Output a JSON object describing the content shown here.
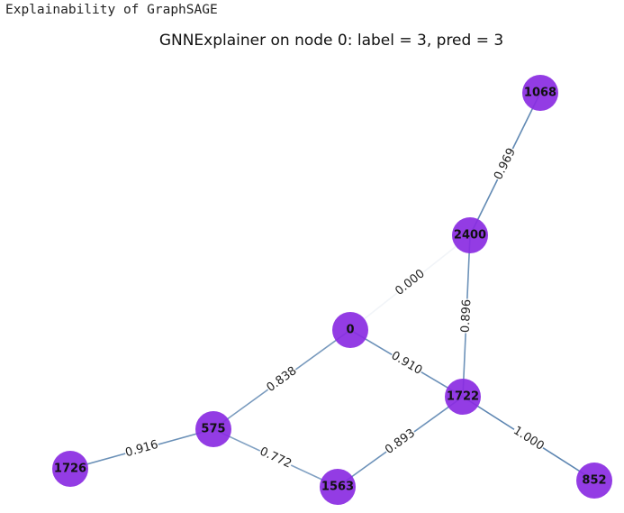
{
  "output_header": "Explainability of GraphSAGE",
  "chart_data": {
    "type": "graph",
    "title": "GNNExplainer on node 0: label = 3, pred = 3",
    "node_color": "#8a2be2",
    "edge_color": "#4a78a8",
    "nodes": [
      {
        "id": "1068",
        "label": "1068"
      },
      {
        "id": "2400",
        "label": "2400"
      },
      {
        "id": "0",
        "label": "0"
      },
      {
        "id": "1722",
        "label": "1722"
      },
      {
        "id": "575",
        "label": "575"
      },
      {
        "id": "1726",
        "label": "1726"
      },
      {
        "id": "1563",
        "label": "1563"
      },
      {
        "id": "852",
        "label": "852"
      }
    ],
    "edges": [
      {
        "source": "2400",
        "target": "1068",
        "weight": "0.969"
      },
      {
        "source": "0",
        "target": "2400",
        "weight": "0.000"
      },
      {
        "source": "2400",
        "target": "1722",
        "weight": "0.896"
      },
      {
        "source": "0",
        "target": "1722",
        "weight": "0.910"
      },
      {
        "source": "0",
        "target": "575",
        "weight": "0.838"
      },
      {
        "source": "1726",
        "target": "575",
        "weight": "0.916"
      },
      {
        "source": "575",
        "target": "1563",
        "weight": "0.772"
      },
      {
        "source": "1563",
        "target": "1722",
        "weight": "0.893"
      },
      {
        "source": "1722",
        "target": "852",
        "weight": "1.000"
      }
    ]
  }
}
